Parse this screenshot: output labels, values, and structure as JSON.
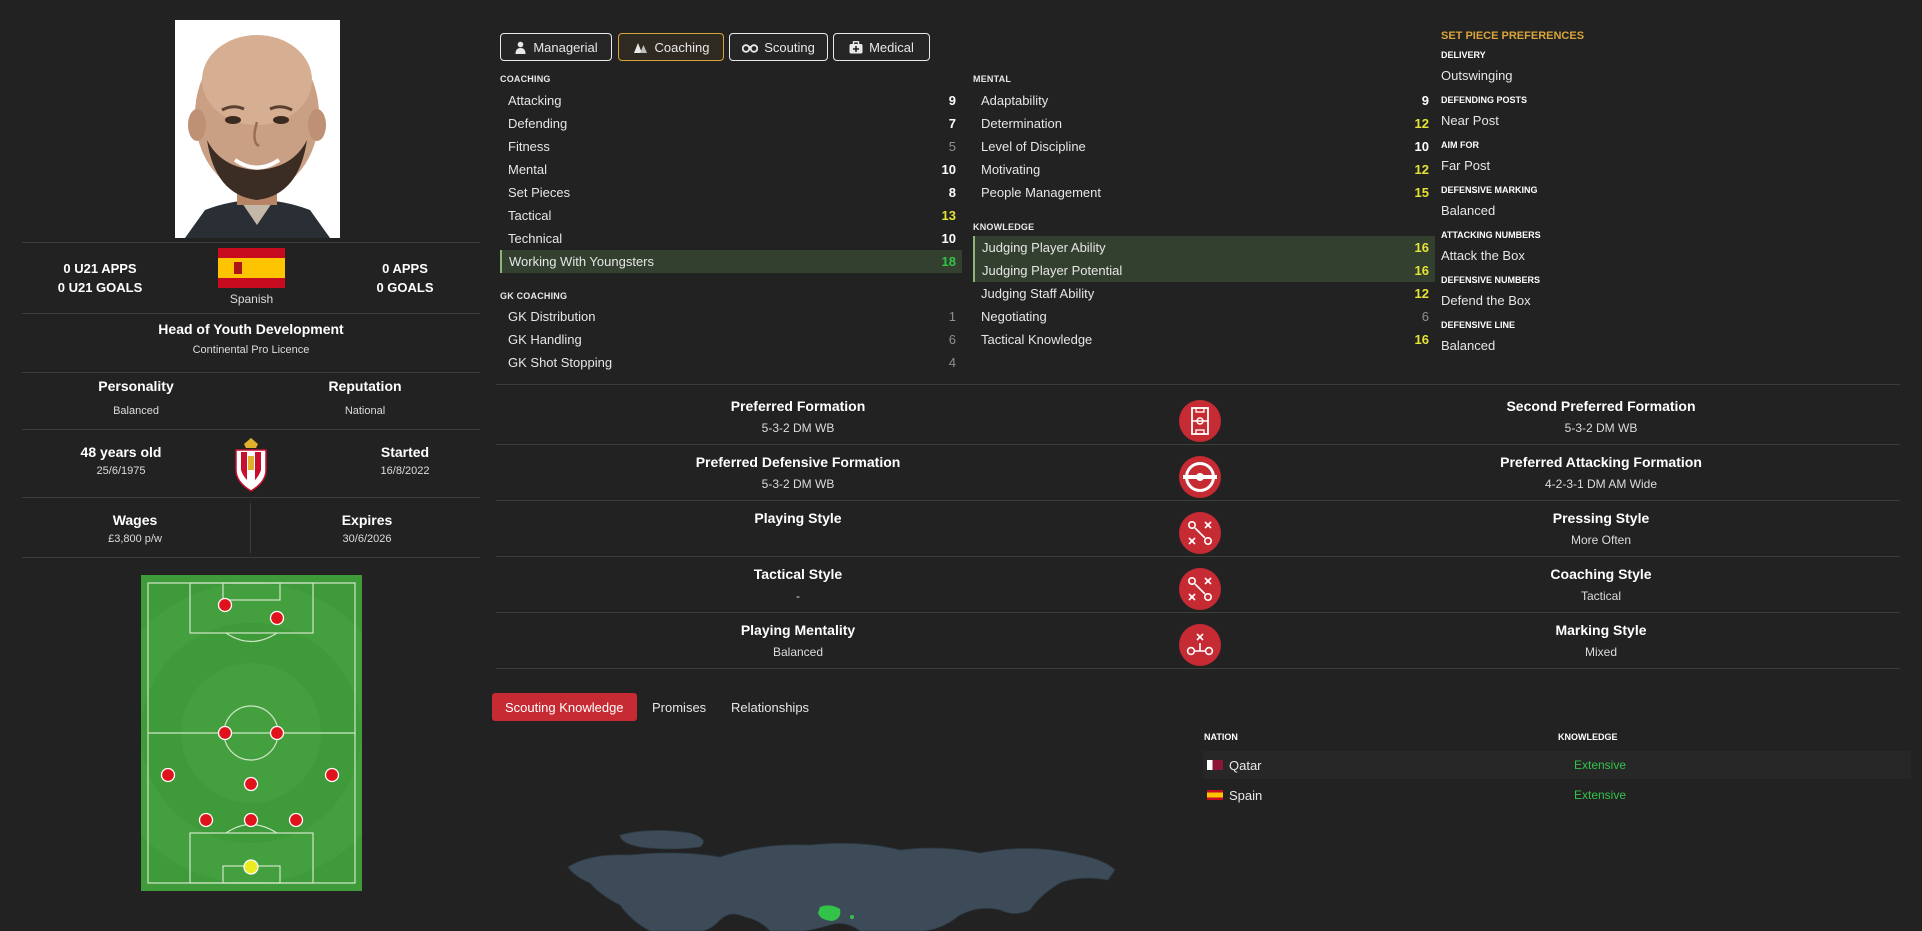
{
  "profile": {
    "u21_apps": "0 U21 APPS",
    "u21_goals": "0 U21 GOALS",
    "nationality": "Spanish",
    "apps": "0 APPS",
    "goals": "0 GOALS",
    "role": "Head of Youth Development",
    "licence": "Continental Pro Licence",
    "personality_label": "Personality",
    "personality_value": "Balanced",
    "reputation_label": "Reputation",
    "reputation_value": "National",
    "age": "48 years old",
    "dob": "25/6/1975",
    "started_label": "Started",
    "started_value": "16/8/2022",
    "wages_label": "Wages",
    "wages_value": "£3,800 p/w",
    "expires_label": "Expires",
    "expires_value": "30/6/2026"
  },
  "tabs": [
    {
      "label": "Managerial",
      "icon": "person-icon",
      "active": false
    },
    {
      "label": "Coaching",
      "icon": "cones-icon",
      "active": true
    },
    {
      "label": "Scouting",
      "icon": "binoculars-icon",
      "active": false
    },
    {
      "label": "Medical",
      "icon": "medical-kit-icon",
      "active": false
    }
  ],
  "coaching": {
    "title": "COACHING",
    "items": [
      {
        "label": "Attacking",
        "value": "9",
        "tone": "white"
      },
      {
        "label": "Defending",
        "value": "7",
        "tone": "white"
      },
      {
        "label": "Fitness",
        "value": "5",
        "tone": "gray"
      },
      {
        "label": "Mental",
        "value": "10",
        "tone": "white"
      },
      {
        "label": "Set Pieces",
        "value": "8",
        "tone": "white"
      },
      {
        "label": "Tactical",
        "value": "13",
        "tone": "yellow"
      },
      {
        "label": "Technical",
        "value": "10",
        "tone": "white"
      },
      {
        "label": "Working With Youngsters",
        "value": "18",
        "tone": "green",
        "highlight": true
      }
    ]
  },
  "gk_coaching": {
    "title": "GK COACHING",
    "items": [
      {
        "label": "GK Distribution",
        "value": "1",
        "tone": "gray"
      },
      {
        "label": "GK Handling",
        "value": "6",
        "tone": "gray"
      },
      {
        "label": "GK Shot Stopping",
        "value": "4",
        "tone": "gray"
      }
    ]
  },
  "mental": {
    "title": "MENTAL",
    "items": [
      {
        "label": "Adaptability",
        "value": "9",
        "tone": "white"
      },
      {
        "label": "Determination",
        "value": "12",
        "tone": "yellow"
      },
      {
        "label": "Level of Discipline",
        "value": "10",
        "tone": "white"
      },
      {
        "label": "Motivating",
        "value": "12",
        "tone": "yellow"
      },
      {
        "label": "People Management",
        "value": "15",
        "tone": "yellow"
      }
    ]
  },
  "knowledge": {
    "title": "KNOWLEDGE",
    "items": [
      {
        "label": "Judging Player Ability",
        "value": "16",
        "tone": "yellow",
        "highlight": true
      },
      {
        "label": "Judging Player Potential",
        "value": "16",
        "tone": "yellow",
        "highlight": true
      },
      {
        "label": "Judging Staff Ability",
        "value": "12",
        "tone": "yellow"
      },
      {
        "label": "Negotiating",
        "value": "6",
        "tone": "gray"
      },
      {
        "label": "Tactical Knowledge",
        "value": "16",
        "tone": "yellow"
      }
    ]
  },
  "set_pieces": {
    "title": "SET PIECE PREFERENCES",
    "items": [
      {
        "label": "DELIVERY",
        "value": "Outswinging"
      },
      {
        "label": "DEFENDING POSTS",
        "value": "Near Post"
      },
      {
        "label": "AIM FOR",
        "value": "Far Post"
      },
      {
        "label": "DEFENSIVE MARKING",
        "value": "Balanced"
      },
      {
        "label": "ATTACKING NUMBERS",
        "value": "Attack the Box"
      },
      {
        "label": "DEFENSIVE NUMBERS",
        "value": "Defend the Box"
      },
      {
        "label": "DEFENSIVE LINE",
        "value": "Balanced"
      }
    ]
  },
  "formations": [
    {
      "left_title": "Preferred Formation",
      "left_value": "5-3-2 DM WB",
      "icon": "formation-board-icon",
      "right_title": "Second Preferred Formation",
      "right_value": "5-3-2 DM WB"
    },
    {
      "left_title": "Preferred Defensive Formation",
      "left_value": "5-3-2 DM WB",
      "icon": "target-icon",
      "right_title": "Preferred Attacking Formation",
      "right_value": "4-2-3-1 DM AM Wide"
    },
    {
      "left_title": "Playing Style",
      "left_value": "",
      "icon": "tactics-arrows-icon",
      "right_title": "Pressing Style",
      "right_value": "More Often"
    },
    {
      "left_title": "Tactical Style",
      "left_value": "-",
      "icon": "tactics-arrows-icon",
      "right_title": "Coaching Style",
      "right_value": "Tactical"
    },
    {
      "left_title": "Playing Mentality",
      "left_value": "Balanced",
      "icon": "tactics-nodes-icon",
      "right_title": "Marking Style",
      "right_value": "Mixed"
    }
  ],
  "bottom_tabs": [
    {
      "label": "Scouting Knowledge",
      "active": true
    },
    {
      "label": "Promises",
      "active": false
    },
    {
      "label": "Relationships",
      "active": false
    }
  ],
  "knowledge_table": {
    "headers": {
      "nation": "NATION",
      "knowledge": "KNOWLEDGE"
    },
    "rows": [
      {
        "nation": "Qatar",
        "knowledge": "Extensive",
        "flag": "qatar-flag"
      },
      {
        "nation": "Spain",
        "knowledge": "Extensive",
        "flag": "spain-flag"
      }
    ]
  },
  "colors": {
    "background": "#222222",
    "accent_red": "#c62a33",
    "accent_gold": "#d9a33b",
    "value_yellow": "#e6e337",
    "value_green": "#33c34b",
    "pitch_green": "#3f9a3a"
  }
}
